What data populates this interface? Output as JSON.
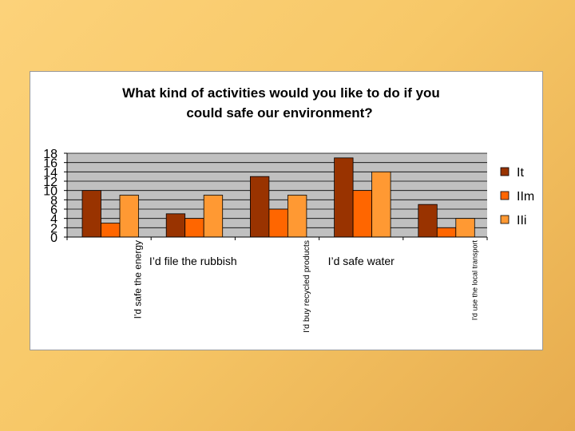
{
  "chart_data": {
    "type": "bar",
    "title": "What kind of activities would you like to do if you could safe our environment?",
    "title_lines": [
      "What kind of activities would you like to do if you",
      "could safe our environment?"
    ],
    "categories": [
      "I'd safe the energy",
      "I’d file the rubbish",
      "I'd buy recycled products",
      "I’d safe water",
      "I'd use the local transport"
    ],
    "series": [
      {
        "name": "It",
        "color": "#993300",
        "values": [
          10,
          5,
          13,
          17,
          7
        ]
      },
      {
        "name": "IIm",
        "color": "#ff6600",
        "values": [
          3,
          4,
          6,
          10,
          2
        ]
      },
      {
        "name": "IIi",
        "color": "#ff9933",
        "values": [
          9,
          9,
          9,
          14,
          4
        ]
      }
    ],
    "y_ticks": [
      "0",
      "2",
      "4",
      "6",
      "8",
      "10",
      "12",
      "14",
      "16",
      "18"
    ],
    "ylim": [
      0,
      18
    ],
    "grid": true,
    "plot_background": "#c0c0c0",
    "legend_position": "right"
  }
}
